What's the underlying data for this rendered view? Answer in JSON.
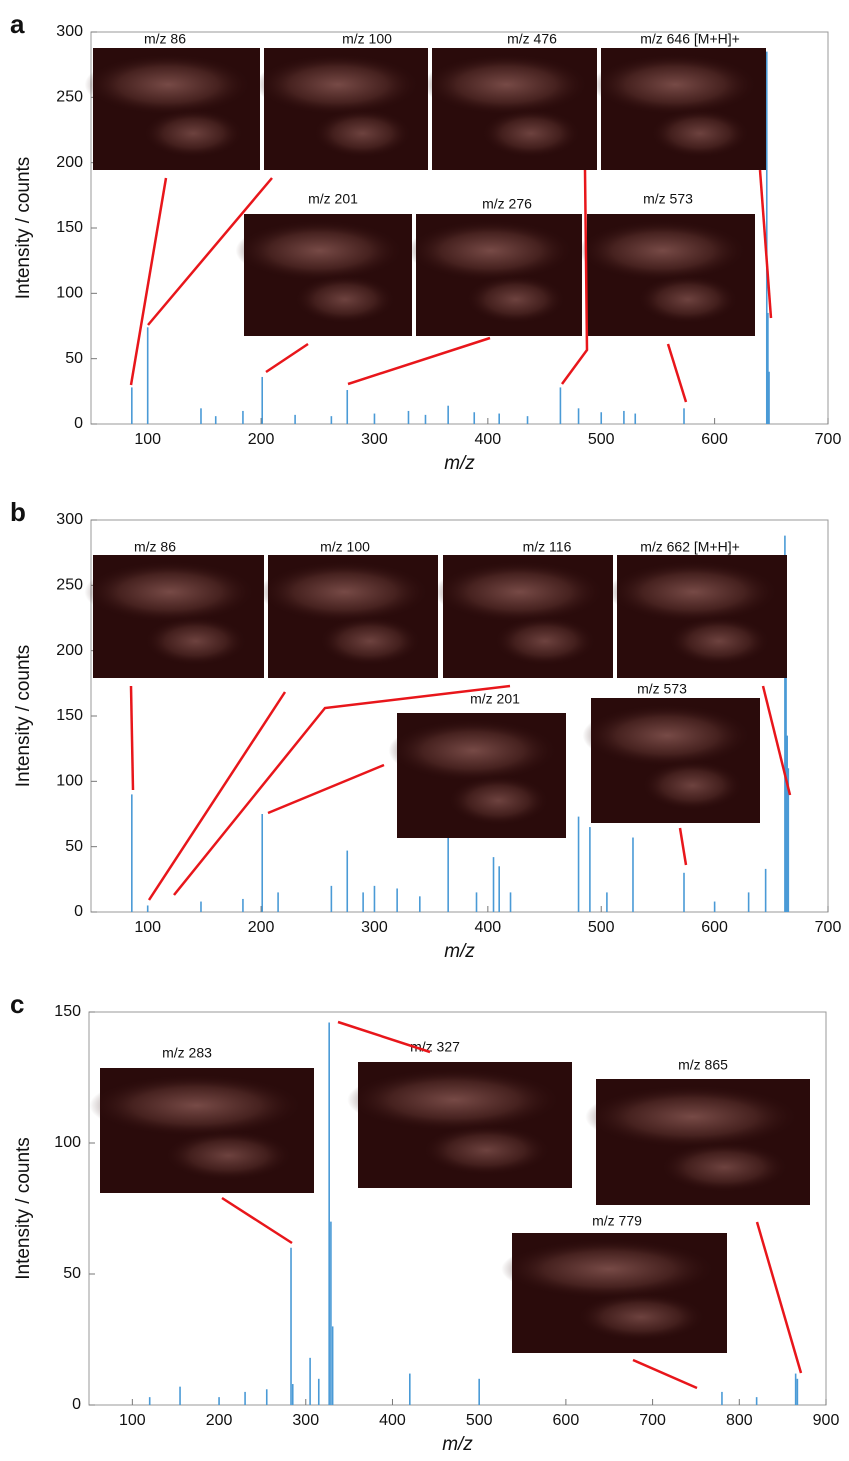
{
  "chart_data": [
    {
      "type": "bar",
      "panel": "a",
      "xlabel": "m/z",
      "ylabel": "Intensity / counts",
      "color": "#4a9ad6",
      "x": [
        86,
        100,
        147,
        160,
        184,
        201,
        230,
        262,
        276,
        300,
        330,
        345,
        365,
        388,
        410,
        435,
        464,
        480,
        500,
        520,
        530,
        573,
        646,
        647,
        648
      ],
      "values": [
        28,
        74,
        12,
        6,
        10,
        36,
        7,
        6,
        26,
        8,
        10,
        7,
        14,
        9,
        8,
        6,
        28,
        12,
        9,
        10,
        8,
        12,
        285,
        85,
        40
      ],
      "xlim": [
        50,
        700
      ],
      "ylim": [
        0,
        300
      ],
      "xticks": [
        100,
        200,
        300,
        400,
        500,
        600,
        700
      ],
      "yticks": [
        0,
        50,
        100,
        150,
        200,
        250,
        300
      ],
      "annotations": [
        "m/z 86",
        "m/z 100",
        "m/z 476",
        "m/z 646 [M+H]+",
        "m/z 201",
        "m/z 276",
        "m/z 573"
      ]
    },
    {
      "type": "bar",
      "panel": "b",
      "xlabel": "m/z",
      "ylabel": "Intensity / counts",
      "color": "#4a9ad6",
      "x": [
        86,
        100,
        147,
        184,
        201,
        215,
        262,
        276,
        290,
        300,
        320,
        340,
        365,
        390,
        405,
        410,
        420,
        480,
        490,
        505,
        528,
        573,
        600,
        630,
        645,
        662,
        663,
        664,
        665
      ],
      "values": [
        90,
        5,
        8,
        10,
        75,
        15,
        20,
        47,
        15,
        20,
        18,
        12,
        60,
        15,
        42,
        35,
        15,
        73,
        65,
        15,
        57,
        30,
        8,
        15,
        33,
        288,
        195,
        135,
        110
      ],
      "xlim": [
        50,
        700
      ],
      "ylim": [
        0,
        300
      ],
      "xticks": [
        100,
        200,
        300,
        400,
        500,
        600,
        700
      ],
      "yticks": [
        0,
        50,
        100,
        150,
        200,
        250,
        300
      ],
      "annotations": [
        "m/z 86",
        "m/z 100",
        "m/z 116",
        "m/z 662 [M+H]+",
        "m/z 201",
        "m/z 573"
      ]
    },
    {
      "type": "bar",
      "panel": "c",
      "xlabel": "m/z",
      "ylabel": "Intensity / counts",
      "color": "#4a9ad6",
      "x": [
        120,
        155,
        200,
        230,
        255,
        283,
        285,
        305,
        315,
        327,
        329,
        331,
        420,
        500,
        780,
        820,
        865,
        867
      ],
      "values": [
        3,
        7,
        3,
        5,
        6,
        60,
        8,
        18,
        10,
        146,
        70,
        30,
        12,
        10,
        5,
        3,
        12,
        10
      ],
      "xlim": [
        50,
        900
      ],
      "ylim": [
        0,
        150
      ],
      "xticks": [
        100,
        200,
        300,
        400,
        500,
        600,
        700,
        800,
        900
      ],
      "yticks": [
        0,
        50,
        100,
        150
      ],
      "annotations": [
        "m/z 283",
        "m/z 327",
        "m/z 865",
        "m/z 779"
      ]
    }
  ]
}
